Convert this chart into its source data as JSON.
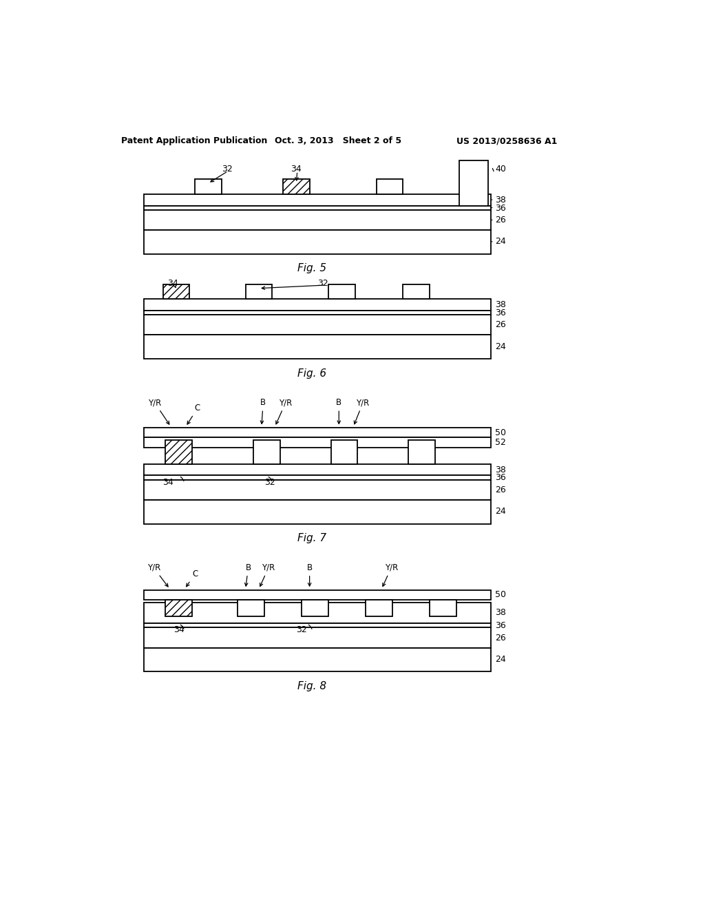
{
  "header_left": "Patent Application Publication",
  "header_mid": "Oct. 3, 2013   Sheet 2 of 5",
  "header_right": "US 2013/0258636 A1",
  "fig5_caption": "Fig. 5",
  "fig6_caption": "Fig. 6",
  "fig7_caption": "Fig. 7",
  "fig8_caption": "Fig. 8",
  "bg_color": "#ffffff"
}
